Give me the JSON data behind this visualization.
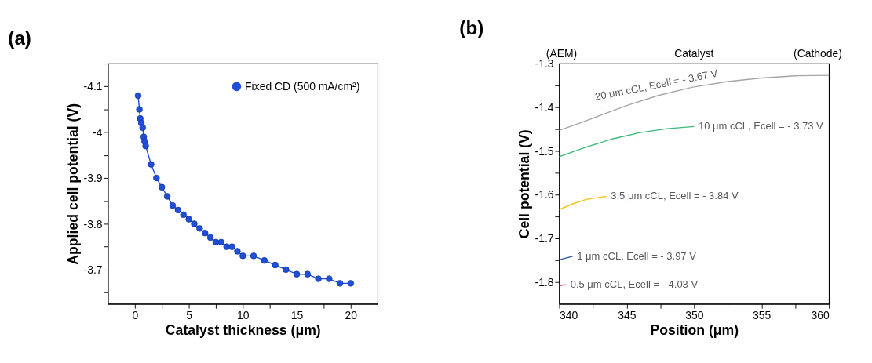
{
  "chart_data": [
    {
      "type": "line",
      "title": "(a)",
      "xlabel": "Catalyst thickness (μm)",
      "ylabel": "Applied cell potential (V)",
      "x": [
        0.3,
        0.42,
        0.5,
        0.6,
        0.72,
        0.82,
        0.9,
        1.0,
        1.5,
        2.0,
        2.5,
        3.0,
        3.5,
        4.0,
        4.5,
        5,
        5.5,
        6,
        6.5,
        7,
        7.5,
        8,
        8.5,
        9,
        9.5,
        10,
        11,
        12,
        13,
        14,
        15,
        16,
        17,
        18,
        19,
        20
      ],
      "series": [
        {
          "name": "Fixed CD (500 mA/cm²)",
          "color": "#1f4fd8",
          "values": [
            -4.08,
            -4.05,
            -4.03,
            -4.02,
            -4.01,
            -3.99,
            -3.98,
            -3.97,
            -3.93,
            -3.9,
            -3.88,
            -3.86,
            -3.84,
            -3.83,
            -3.82,
            -3.81,
            -3.8,
            -3.79,
            -3.78,
            -3.77,
            -3.76,
            -3.76,
            -3.75,
            -3.75,
            -3.74,
            -3.73,
            -3.73,
            -3.72,
            -3.71,
            -3.7,
            -3.69,
            -3.69,
            -3.68,
            -3.68,
            -3.67,
            -3.67
          ]
        }
      ],
      "xlim": [
        -2.5,
        22.5
      ],
      "xticks": [
        0,
        {
          "value": 2.5,
          "label": null
        },
        5,
        {
          "value": 7.5,
          "label": null
        },
        10,
        {
          "value": 12.5,
          "label": null
        },
        15,
        {
          "value": 17.5,
          "label": null
        },
        20
      ],
      "ylim": [
        -3.625,
        -4.15
      ],
      "yticks": [
        {
          "value": -4.15,
          "label": null
        },
        -4.1,
        {
          "value": -4.05,
          "label": null
        },
        -4,
        {
          "value": -3.95,
          "label": null
        },
        -3.9,
        {
          "value": -3.85,
          "label": null
        },
        -3.8,
        {
          "value": -3.75,
          "label": null
        },
        -3.7,
        {
          "value": -3.65,
          "label": null
        }
      ],
      "marker": "circle",
      "legend": "top right",
      "grid": false
    },
    {
      "type": "line",
      "title": "(b)",
      "xlabel": "Position (μm)",
      "ylabel": "Cell potential (V)",
      "series": [
        {
          "name": "20 μm cCL, Ecell = - 3.67 V",
          "color": "#a6a6a6",
          "x": [
            340,
            342.25,
            345,
            347.35,
            349.9,
            352.5,
            355,
            357.5,
            360
          ],
          "values": [
            -1.453,
            -1.428,
            -1.396,
            -1.373,
            -1.354,
            -1.341,
            -1.333,
            -1.328,
            -1.327
          ]
        },
        {
          "name": "10 μm cCL, Ecell = - 3.73 V",
          "color": "#3cb878",
          "x": [
            340,
            342,
            344,
            346,
            348,
            350
          ],
          "values": [
            -1.513,
            -1.491,
            -1.472,
            -1.458,
            -1.449,
            -1.444
          ]
        },
        {
          "name": "3.5 μm cCL, Ecell = - 3.84 V",
          "color": "#f2c418",
          "x": [
            340,
            341,
            342,
            343,
            343.5
          ],
          "values": [
            -1.634,
            -1.621,
            -1.611,
            -1.606,
            -1.604
          ]
        },
        {
          "name": "1 μm cCL, Ecell = - 3.97 V",
          "color": "#2f5597",
          "x": [
            340,
            341
          ],
          "values": [
            -1.749,
            -1.741
          ]
        },
        {
          "name": "0.5 μm cCL, Ecell = - 4.03 V",
          "color": "#d62020",
          "x": [
            340,
            340.5
          ],
          "values": [
            -1.808,
            -1.806
          ]
        }
      ],
      "xlim": [
        340,
        360
      ],
      "xticks": [
        340,
        {
          "value": 342.5,
          "label": null
        },
        345,
        {
          "value": 347.5,
          "label": null
        },
        350,
        {
          "value": 352.5,
          "label": null
        },
        355,
        {
          "value": 357.5,
          "label": null
        },
        360
      ],
      "annotations": [
        "(AEM)",
        "Catalyst",
        "(Cathode)"
      ],
      "ylim": [
        -1.85,
        -1.3
      ],
      "yticks": [
        -1.3,
        {
          "value": -1.35,
          "label": null
        },
        -1.4,
        {
          "value": -1.45,
          "label": null
        },
        -1.5,
        {
          "value": -1.55,
          "label": null
        },
        -1.6,
        {
          "value": -1.65,
          "label": null
        },
        -1.7,
        {
          "value": -1.75,
          "label": null
        },
        -1.8
      ],
      "legend": false,
      "grid": false
    }
  ]
}
